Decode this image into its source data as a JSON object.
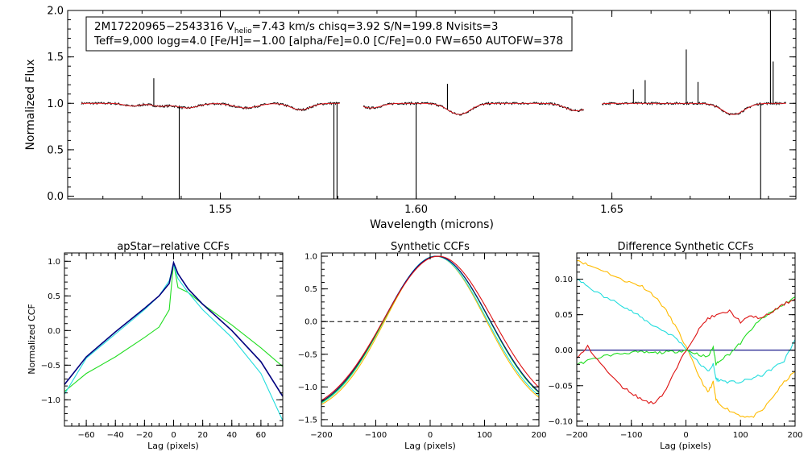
{
  "header": {
    "line1_pre": "2M17220965−2543316  V",
    "line1_sub": "helio",
    "line1_post": "=7.43 km/s  chisq=3.92  S/N=199.8  Nvisits=3",
    "line2": "Teff=9,000 logg=4.0 [Fe/H]=−1.00 [alpha/Fe]=0.0 [C/Fe]=0.0 FW=650 AUTOFW=378"
  },
  "colors": {
    "observed": "#000000",
    "model": "#e8141a",
    "blue": "#00007f",
    "green": "#22dd22",
    "cyan": "#22dddd",
    "red": "#dd1111",
    "orange": "#ffbb00",
    "axis": "#000000"
  },
  "chart_data": [
    {
      "id": "spectrum",
      "type": "line",
      "title": "",
      "xlabel": "Wavelength (microns)",
      "ylabel": "Normalized Flux",
      "xlim": [
        1.511,
        1.697
      ],
      "ylim": [
        -0.03,
        2.0
      ],
      "xticks": [
        1.55,
        1.6,
        1.65
      ],
      "xtick_labels": [
        "1.55",
        "1.60",
        "1.65"
      ],
      "yticks": [
        0.0,
        0.5,
        1.0,
        1.5,
        2.0
      ],
      "ytick_labels": [
        "0.0",
        "0.5",
        "1.0",
        "1.5",
        "2.0"
      ],
      "segments": [
        [
          1.5145,
          1.5805
        ],
        [
          1.5865,
          1.6428
        ],
        [
          1.6475,
          1.6945
        ]
      ],
      "absorption": [
        {
          "center": 1.5275,
          "width": 0.002,
          "depth": 0.03
        },
        {
          "center": 1.5345,
          "width": 0.002,
          "depth": 0.03
        },
        {
          "center": 1.5415,
          "width": 0.0028,
          "depth": 0.05
        },
        {
          "center": 1.5565,
          "width": 0.003,
          "depth": 0.05
        },
        {
          "center": 1.5705,
          "width": 0.0025,
          "depth": 0.07
        },
        {
          "center": 1.5885,
          "width": 0.0025,
          "depth": 0.05
        },
        {
          "center": 1.611,
          "width": 0.0028,
          "depth": 0.12
        },
        {
          "center": 1.641,
          "width": 0.0028,
          "depth": 0.08
        },
        {
          "center": 1.681,
          "width": 0.0028,
          "depth": 0.12
        }
      ],
      "spikes": [
        {
          "x": 1.533,
          "y": 1.27
        },
        {
          "x": 1.5395,
          "y": -0.03
        },
        {
          "x": 1.579,
          "y": -0.03
        },
        {
          "x": 1.5798,
          "y": -0.03
        },
        {
          "x": 1.6,
          "y": -0.03
        },
        {
          "x": 1.608,
          "y": 1.21
        },
        {
          "x": 1.6585,
          "y": 1.25
        },
        {
          "x": 1.6555,
          "y": 1.15
        },
        {
          "x": 1.669,
          "y": 1.58
        },
        {
          "x": 1.672,
          "y": 1.23
        },
        {
          "x": 1.688,
          "y": -0.03
        },
        {
          "x": 1.6905,
          "y": 2.0
        },
        {
          "x": 1.6912,
          "y": 1.45
        }
      ]
    },
    {
      "id": "apstar_ccf",
      "type": "line",
      "title": "apStar−relative CCFs",
      "xlabel": "Lag (pixels)",
      "ylabel": "Normalized CCF",
      "xlim": [
        -75,
        75
      ],
      "ylim": [
        -1.38,
        1.12
      ],
      "xticks": [
        -60,
        -40,
        -20,
        0,
        20,
        40,
        60
      ],
      "xtick_labels": [
        "−60",
        "−40",
        "−20",
        "0",
        "20",
        "40",
        "60"
      ],
      "yticks": [
        -1.0,
        -0.5,
        0.0,
        0.5,
        1.0
      ],
      "ytick_labels": [
        "−1.0",
        "−0.5",
        "0.0",
        "0.5",
        "1.0"
      ],
      "series": [
        {
          "name": "green",
          "color": "green",
          "x": [
            -75,
            -60,
            -40,
            -20,
            -10,
            -3,
            0,
            3,
            10,
            20,
            40,
            60,
            75
          ],
          "y": [
            -0.88,
            -0.62,
            -0.38,
            -0.1,
            0.05,
            0.3,
            0.98,
            0.62,
            0.55,
            0.38,
            0.08,
            -0.25,
            -0.52
          ]
        },
        {
          "name": "cyan",
          "color": "cyan",
          "x": [
            -75,
            -60,
            -40,
            -20,
            -10,
            -3,
            0,
            3,
            10,
            20,
            40,
            60,
            75
          ],
          "y": [
            -0.92,
            -0.4,
            -0.05,
            0.3,
            0.5,
            0.72,
            0.95,
            0.75,
            0.55,
            0.3,
            -0.1,
            -0.62,
            -1.3
          ]
        },
        {
          "name": "darkblue",
          "color": "blue",
          "x": [
            -75,
            -60,
            -40,
            -20,
            -10,
            -3,
            0,
            3,
            10,
            20,
            40,
            60,
            75
          ],
          "y": [
            -0.78,
            -0.38,
            -0.02,
            0.32,
            0.5,
            0.68,
            0.98,
            0.82,
            0.6,
            0.38,
            0.0,
            -0.45,
            -0.95
          ]
        }
      ]
    },
    {
      "id": "synthetic_ccf",
      "type": "line",
      "title": "Synthetic CCFs",
      "xlabel": "Lag (pixels)",
      "ylabel": "",
      "xlim": [
        -200,
        200
      ],
      "ylim": [
        -1.6,
        1.05
      ],
      "xticks": [
        -200,
        -100,
        0,
        100,
        200
      ],
      "xtick_labels": [
        "−200",
        "−100",
        "0",
        "100",
        "200"
      ],
      "yticks": [
        -1.5,
        -1.0,
        -0.5,
        0.0,
        0.5,
        1.0
      ],
      "ytick_labels": [
        "−1.5",
        "−1.0",
        "−0.5",
        "0.0",
        "0.5",
        "1.0"
      ],
      "reference_line": 0.0,
      "series": [
        {
          "name": "orange",
          "color": "orange",
          "peak": 10,
          "sigma": 92,
          "scale": 2.45
        },
        {
          "name": "cyan",
          "color": "cyan",
          "peak": 10,
          "sigma": 94,
          "scale": 2.45
        },
        {
          "name": "green",
          "color": "green",
          "peak": 12,
          "sigma": 96,
          "scale": 2.45
        },
        {
          "name": "darkblue",
          "color": "blue",
          "peak": 12,
          "sigma": 97,
          "scale": 2.45
        },
        {
          "name": "red",
          "color": "red",
          "peak": 15,
          "sigma": 100,
          "scale": 2.45
        }
      ]
    },
    {
      "id": "diff_ccf",
      "type": "line",
      "title": "Difference Synthetic CCFs",
      "xlabel": "Lag (pixels)",
      "ylabel": "",
      "xlim": [
        -200,
        200
      ],
      "ylim": [
        -0.107,
        0.137
      ],
      "xticks": [
        -200,
        -100,
        0,
        100,
        200
      ],
      "xtick_labels": [
        "−200",
        "−100",
        "0",
        "100",
        "200"
      ],
      "yticks": [
        -0.1,
        -0.05,
        0.0,
        0.05,
        0.1
      ],
      "ytick_labels": [
        "−0.10",
        "−0.05",
        "0.00",
        "0.05",
        "0.10"
      ],
      "series": [
        {
          "name": "darkblue",
          "color": "blue",
          "x": [
            -200,
            200
          ],
          "y": [
            0.0,
            0.0
          ]
        },
        {
          "name": "orange",
          "color": "orange",
          "x": [
            -200,
            -180,
            -150,
            -120,
            -100,
            -80,
            -60,
            -40,
            -20,
            0,
            20,
            40,
            50,
            55,
            60,
            80,
            100,
            120,
            140,
            160,
            180,
            200
          ],
          "y": [
            0.128,
            0.12,
            0.112,
            0.1,
            0.095,
            0.09,
            0.078,
            0.06,
            0.035,
            0.005,
            -0.03,
            -0.06,
            -0.045,
            -0.07,
            -0.075,
            -0.085,
            -0.092,
            -0.095,
            -0.085,
            -0.065,
            -0.045,
            -0.03
          ]
        },
        {
          "name": "cyan",
          "color": "cyan",
          "x": [
            -200,
            -180,
            -150,
            -120,
            -100,
            -80,
            -60,
            -40,
            -20,
            0,
            20,
            40,
            50,
            55,
            60,
            80,
            100,
            120,
            140,
            160,
            180,
            200
          ],
          "y": [
            0.1,
            0.09,
            0.075,
            0.065,
            0.055,
            0.045,
            0.035,
            0.027,
            0.018,
            0.003,
            -0.015,
            -0.03,
            -0.02,
            -0.04,
            -0.042,
            -0.045,
            -0.045,
            -0.04,
            -0.035,
            -0.025,
            -0.015,
            0.015
          ]
        },
        {
          "name": "green",
          "color": "green",
          "x": [
            -200,
            -180,
            -150,
            -120,
            -100,
            -80,
            -60,
            -40,
            -20,
            0,
            20,
            40,
            50,
            55,
            60,
            80,
            100,
            120,
            140,
            160,
            180,
            200
          ],
          "y": [
            -0.02,
            -0.015,
            -0.008,
            -0.005,
            -0.003,
            -0.003,
            -0.004,
            -0.003,
            -0.002,
            0.0,
            -0.005,
            -0.01,
            0.005,
            -0.02,
            -0.015,
            -0.005,
            0.01,
            0.03,
            0.045,
            0.055,
            0.065,
            0.075
          ]
        },
        {
          "name": "red",
          "color": "red",
          "x": [
            -200,
            -180,
            -150,
            -120,
            -100,
            -80,
            -60,
            -40,
            -20,
            0,
            20,
            40,
            60,
            80,
            100,
            120,
            140,
            160,
            180,
            200
          ],
          "y": [
            -0.012,
            0.005,
            -0.025,
            -0.05,
            -0.06,
            -0.07,
            -0.075,
            -0.06,
            -0.03,
            0.0,
            0.025,
            0.045,
            0.05,
            0.055,
            0.04,
            0.048,
            0.045,
            0.055,
            0.065,
            0.072
          ]
        }
      ]
    }
  ]
}
